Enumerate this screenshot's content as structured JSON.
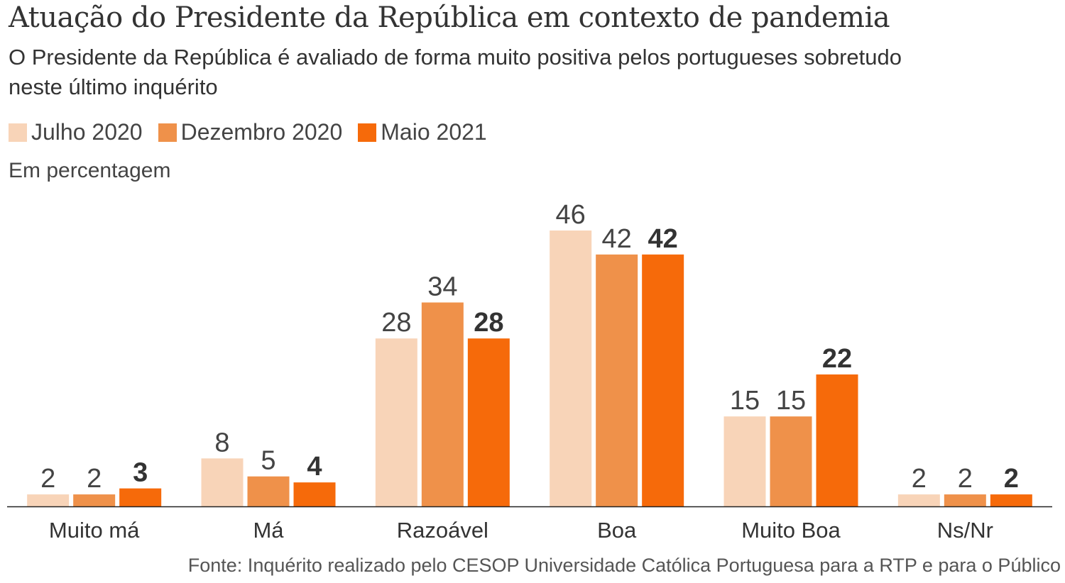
{
  "header": {
    "title": "Atuação do Presidente da República em contexto de pandemia",
    "subtitle": "O Presidente da República é avaliado de forma muito positiva pelos portugueses sobretudo neste último inquérito",
    "unit_note": "Em percentagem"
  },
  "legend": [
    {
      "label": "Julho 2020",
      "color": "#f8d4b8"
    },
    {
      "label": "Dezembro 2020",
      "color": "#ef914a"
    },
    {
      "label": "Maio 2021",
      "color": "#f66a0a"
    }
  ],
  "chart_data": {
    "type": "bar",
    "title": "Atuação do Presidente da República em contexto de pandemia",
    "subtitle": "O Presidente da República é avaliado de forma muito positiva pelos portugueses sobretudo neste último inquérito",
    "xlabel": "",
    "ylabel": "Em percentagem",
    "ylim": [
      0,
      46
    ],
    "grid": false,
    "legend_position": "top-left",
    "categories": [
      "Muito má",
      "Má",
      "Razoável",
      "Boa",
      "Muito Boa",
      "Ns/Nr"
    ],
    "series": [
      {
        "name": "Julho 2020",
        "color": "#f8d4b8",
        "values": [
          2,
          8,
          28,
          46,
          15,
          2
        ]
      },
      {
        "name": "Dezembro 2020",
        "color": "#ef914a",
        "values": [
          2,
          5,
          34,
          42,
          15,
          2
        ]
      },
      {
        "name": "Maio 2021",
        "color": "#f66a0a",
        "values": [
          3,
          4,
          28,
          42,
          22,
          2
        ],
        "labels_bold": true
      }
    ]
  },
  "footer": {
    "source": "Fonte: Inquérito realizado pelo CESOP Universidade Católica Portuguesa para a RTP e para o Público"
  }
}
